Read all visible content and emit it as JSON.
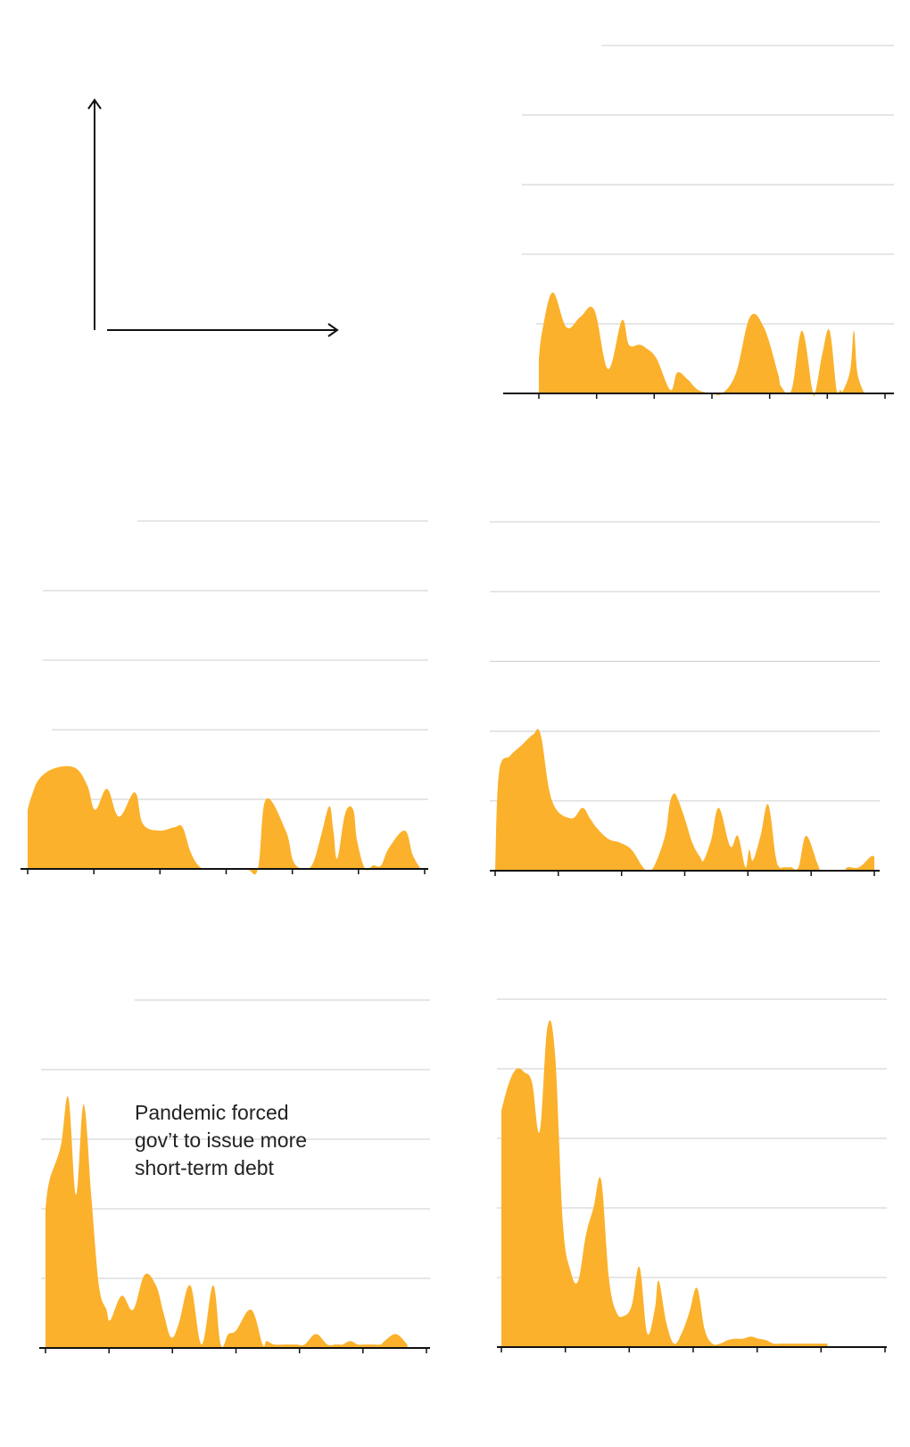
{
  "colors": {
    "area": "#fbb12b",
    "grid": "#d6d6d6",
    "axis": "#111111",
    "text": "#222222"
  },
  "chart_data": [
    {
      "type": "area",
      "xlim": [
        0,
        100
      ],
      "ylim": [
        0,
        5
      ],
      "gridlines": [
        1,
        2,
        3,
        4,
        5
      ],
      "x_ticks": [
        0,
        16.67,
        33.33,
        50,
        66.67,
        83.33,
        100
      ],
      "x": [
        0,
        1,
        4,
        8,
        12,
        16,
        20,
        24,
        26,
        29,
        31,
        34,
        38,
        40,
        43,
        46,
        50,
        53,
        57,
        61,
        65,
        69,
        70,
        73,
        76,
        79,
        80,
        82,
        84,
        86,
        87,
        88,
        90,
        91,
        92,
        94
      ],
      "values": [
        0.5,
        0.9,
        1.45,
        0.95,
        1.1,
        1.2,
        0.35,
        1.05,
        0.7,
        0.7,
        0.65,
        0.5,
        0.05,
        0.3,
        0.2,
        0.05,
        0,
        0,
        0.3,
        1.1,
        0.95,
        0.3,
        0.1,
        0.05,
        0.9,
        0.05,
        0.05,
        0.6,
        0.9,
        0.05,
        0.05,
        0.05,
        0.35,
        0.9,
        0.3,
        0
      ]
    },
    {
      "type": "area",
      "xlim": [
        0,
        100
      ],
      "ylim": [
        0,
        5
      ],
      "gridlines": [
        1,
        2,
        3,
        4,
        5
      ],
      "x_ticks": [
        0,
        16.67,
        33.33,
        50,
        66.67,
        83.33,
        100
      ],
      "x": [
        0,
        1,
        3,
        7,
        12,
        15,
        17,
        20,
        23,
        27,
        29,
        33,
        37,
        39,
        41,
        43,
        45,
        49,
        55,
        58,
        60,
        65,
        67,
        70,
        72,
        74,
        76,
        77,
        78,
        80,
        82,
        83,
        85,
        87,
        89,
        91,
        95,
        97,
        99
      ],
      "values": [
        0.85,
        1.05,
        1.3,
        1.45,
        1.45,
        1.2,
        0.85,
        1.15,
        0.75,
        1.1,
        0.65,
        0.55,
        0.6,
        0.6,
        0.25,
        0.05,
        0,
        0,
        0,
        0,
        1.0,
        0.55,
        0.1,
        0,
        0.1,
        0.5,
        0.9,
        0.55,
        0.15,
        0.8,
        0.85,
        0.4,
        0.0,
        0.05,
        0.05,
        0.3,
        0.55,
        0.2,
        0
      ]
    },
    {
      "type": "area",
      "xlim": [
        0,
        100
      ],
      "ylim": [
        0,
        5
      ],
      "gridlines": [
        1,
        2,
        3,
        4,
        5
      ],
      "x_ticks": [
        0,
        16.67,
        33.33,
        50,
        66.67,
        83.33,
        100
      ],
      "x": [
        0,
        1,
        4,
        7,
        10,
        12,
        15,
        20,
        23,
        25,
        27,
        30,
        33,
        36,
        39,
        41,
        43,
        45,
        46,
        47,
        48,
        50,
        52,
        54,
        55,
        57,
        59,
        62,
        64,
        66,
        67,
        68,
        70,
        72,
        74,
        75,
        76,
        78,
        80,
        82,
        85,
        86,
        88,
        90,
        92,
        93,
        96,
        99,
        100
      ],
      "values": [
        0,
        1.4,
        1.65,
        1.8,
        1.95,
        1.95,
        1.0,
        0.75,
        0.9,
        0.75,
        0.6,
        0.45,
        0.4,
        0.3,
        0.05,
        0,
        0.2,
        0.55,
        0.95,
        1.1,
        1.05,
        0.75,
        0.4,
        0.2,
        0.15,
        0.45,
        0.9,
        0.35,
        0.5,
        0.05,
        0.3,
        0.15,
        0.5,
        0.95,
        0.2,
        0.05,
        0.05,
        0.05,
        0.05,
        0.5,
        0.1,
        0,
        0,
        0,
        0,
        0.05,
        0.05,
        0.2,
        0.2
      ]
    },
    {
      "type": "area",
      "xlim": [
        0,
        100
      ],
      "ylim": [
        0,
        5
      ],
      "gridlines": [
        1,
        2,
        3,
        4,
        5
      ],
      "x_ticks": [
        0,
        16.67,
        33.33,
        50,
        66.67,
        83.33,
        100
      ],
      "x": [
        0,
        1,
        4,
        6,
        8,
        10,
        12,
        14,
        16,
        17,
        20,
        23,
        26,
        29,
        31,
        33,
        35,
        38,
        41,
        44,
        46,
        48,
        50,
        54,
        57,
        58,
        60,
        63,
        65,
        66,
        68,
        71,
        74,
        76,
        77,
        78,
        80,
        82,
        84,
        86,
        88,
        89,
        92,
        95
      ],
      "values": [
        2.0,
        2.4,
        2.9,
        3.6,
        2.2,
        3.5,
        2.2,
        0.9,
        0.55,
        0.4,
        0.75,
        0.55,
        1.05,
        0.9,
        0.5,
        0.15,
        0.35,
        0.9,
        0.05,
        0.9,
        0.05,
        0.2,
        0.25,
        0.55,
        0.05,
        0.1,
        0.05,
        0.05,
        0.05,
        0.05,
        0.05,
        0.2,
        0.05,
        0.05,
        0.05,
        0.05,
        0.1,
        0.05,
        0.05,
        0.05,
        0.05,
        0.1,
        0.2,
        0.05
      ],
      "annotation": [
        "Pandemic forced",
        "gov’t to issue more",
        "short-term debt"
      ]
    },
    {
      "type": "area",
      "xlim": [
        0,
        100
      ],
      "ylim": [
        0,
        5
      ],
      "gridlines": [
        1,
        2,
        3,
        4,
        5
      ],
      "x_ticks": [
        0,
        16.67,
        33.33,
        50,
        66.67,
        83.33,
        100
      ],
      "x": [
        0,
        2,
        4,
        6,
        8,
        10,
        12,
        14,
        16,
        18,
        20,
        22,
        24,
        26,
        28,
        30,
        32,
        34,
        36,
        38,
        40,
        41,
        43,
        45,
        47,
        49,
        51,
        53,
        55,
        57,
        59,
        61,
        63,
        65,
        67,
        69,
        71,
        73,
        75,
        77,
        79,
        81,
        83,
        85
      ],
      "values": [
        3.4,
        3.8,
        4.0,
        3.95,
        3.8,
        3.1,
        4.6,
        4.2,
        1.8,
        1.1,
        0.95,
        1.6,
        2.0,
        2.4,
        1.0,
        0.5,
        0.45,
        0.6,
        1.15,
        0.2,
        0.55,
        0.95,
        0.35,
        0.05,
        0.2,
        0.5,
        0.85,
        0.25,
        0.05,
        0.05,
        0.1,
        0.12,
        0.12,
        0.15,
        0.12,
        0.1,
        0.05,
        0.05,
        0.05,
        0.05,
        0.05,
        0.05,
        0.05,
        0.05
      ]
    }
  ]
}
